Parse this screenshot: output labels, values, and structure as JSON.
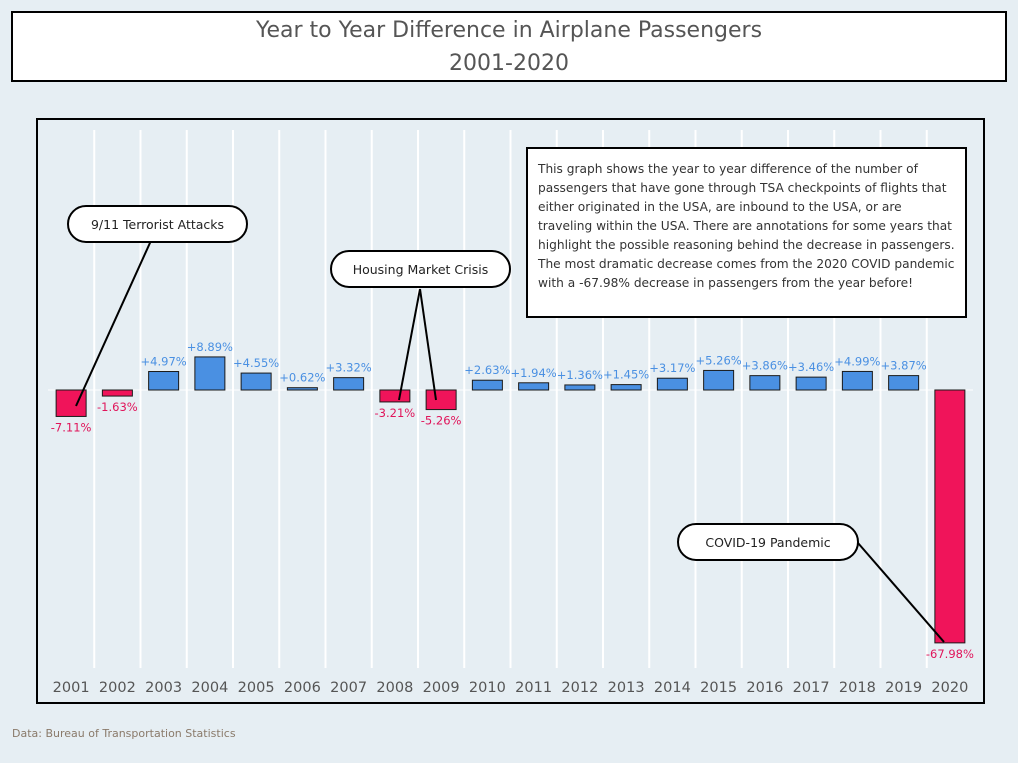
{
  "header": {
    "title_line1": "Year to Year Difference in Airplane Passengers",
    "title_line2": "2001-2020"
  },
  "description": "This graph shows the year to year difference of the number of passengers that have gone through TSA checkpoints of flights that either originated in the USA, are inbound to the USA, or are traveling within the USA.  There are annotations for some years that highlight the possible reasoning behind the decrease in passengers. The most dramatic decrease comes from the 2020 COVID pandemic with a -67.98% decrease in passengers from the year before!",
  "annotations": {
    "terror": "9/11 Terrorist Attacks",
    "housing": "Housing Market Crisis",
    "covid": "COVID-19 Pandemic"
  },
  "source": "Data: Bureau of Transportation Statistics",
  "colors": {
    "positive": "#4a90e2",
    "negative": "#f0145a",
    "pos_label": "#4a90e2",
    "neg_label": "#e0145a"
  },
  "chart_data": {
    "type": "bar",
    "categories": [
      "2001",
      "2002",
      "2003",
      "2004",
      "2005",
      "2006",
      "2007",
      "2008",
      "2009",
      "2010",
      "2011",
      "2012",
      "2013",
      "2014",
      "2015",
      "2016",
      "2017",
      "2018",
      "2019",
      "2020"
    ],
    "values": [
      -7.11,
      -1.63,
      4.97,
      8.89,
      4.55,
      0.62,
      3.32,
      -3.21,
      -5.26,
      2.63,
      1.94,
      1.36,
      1.45,
      3.17,
      5.26,
      3.86,
      3.46,
      4.99,
      3.87,
      -67.98
    ],
    "labels": [
      "-7.11%",
      "-1.63%",
      "+4.97%",
      "+8.89%",
      "+4.55%",
      "+0.62%",
      "+3.32%",
      "-3.21%",
      "-5.26%",
      "+2.63%",
      "+1.94%",
      "+1.36%",
      "+1.45%",
      "+3.17%",
      "+5.26%",
      "+3.86%",
      "+3.46%",
      "+4.99%",
      "+3.87%",
      "-67.98%"
    ],
    "title": "Year to Year Difference in Airplane Passengers 2001-2020",
    "xlabel": "",
    "ylabel": "",
    "ylim": [
      -75,
      72
    ],
    "grid": "vertical"
  }
}
